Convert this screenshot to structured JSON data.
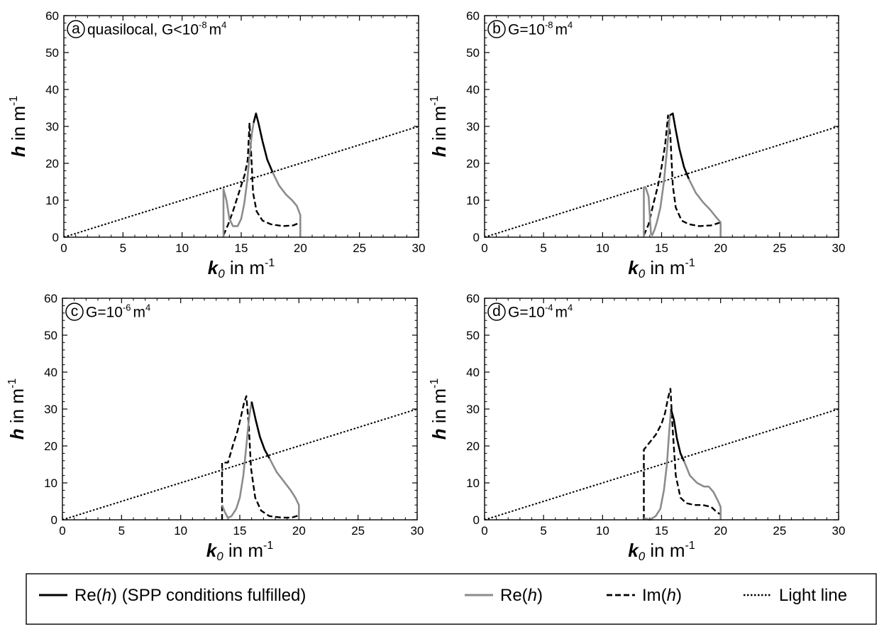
{
  "chart_data": [
    {
      "type": "line",
      "panel_letter": "a",
      "annotation": "quasilocal, G<10",
      "annotation_exp": "-8",
      "annotation_unit": "m",
      "annotation_unit_exp": "4",
      "xlabel_var": "k",
      "xlabel_sub": "0",
      "xlabel_unit": " in m",
      "xlabel_exp": "-1",
      "ylabel_var": "h",
      "ylabel_unit": " in m",
      "ylabel_exp": "-1",
      "xlim": [
        0,
        30
      ],
      "ylim": [
        0,
        60
      ],
      "xticks": [
        "0",
        "5",
        "10",
        "15",
        "20",
        "25",
        "30"
      ],
      "yticks": [
        "0",
        "10",
        "20",
        "30",
        "40",
        "50",
        "60"
      ],
      "series": [
        {
          "key": "light",
          "x": [
            0,
            30
          ],
          "y": [
            0,
            30
          ]
        },
        {
          "key": "im",
          "x": [
            13.5,
            13.9,
            14.3,
            14.7,
            15.0,
            15.3,
            15.55,
            15.7,
            15.85,
            16.0,
            16.3,
            16.8,
            17.5,
            18.5,
            19.4,
            20.0
          ],
          "y": [
            0.5,
            3.5,
            7,
            11,
            14,
            17,
            21,
            31,
            22,
            12,
            7,
            4.5,
            3.5,
            3,
            3.2,
            4
          ]
        },
        {
          "key": "re_gray",
          "x": [
            13.5,
            13.5,
            13.75,
            14.0,
            14.3,
            14.7,
            15.0,
            15.25,
            15.5,
            15.7,
            15.9,
            16.05
          ],
          "y": [
            0,
            13,
            10,
            5,
            3,
            3,
            5,
            9,
            15,
            22,
            28,
            31
          ]
        },
        {
          "key": "re_spp",
          "x": [
            16.05,
            16.25,
            16.45,
            16.8,
            17.2,
            17.65
          ],
          "y": [
            31,
            33.5,
            31,
            26,
            21,
            17.6
          ]
        },
        {
          "key": "re_gray",
          "x": [
            17.65,
            18.2,
            18.8,
            19.3,
            19.7,
            20.0,
            20.0
          ],
          "y": [
            17.6,
            14,
            11.5,
            10,
            8.5,
            6,
            0
          ]
        }
      ]
    },
    {
      "type": "line",
      "panel_letter": "b",
      "annotation": "G=10",
      "annotation_exp": "-8",
      "annotation_unit": "m",
      "annotation_unit_exp": "4",
      "xlabel_var": "k",
      "xlabel_sub": "0",
      "xlabel_unit": " in m",
      "xlabel_exp": "-1",
      "ylabel_var": "h",
      "ylabel_unit": " in m",
      "ylabel_exp": "-1",
      "xlim": [
        0,
        30
      ],
      "ylim": [
        0,
        60
      ],
      "xticks": [
        "0",
        "5",
        "10",
        "15",
        "20",
        "25",
        "30"
      ],
      "yticks": [
        "0",
        "10",
        "20",
        "30",
        "40",
        "50",
        "60"
      ],
      "series": [
        {
          "key": "light",
          "x": [
            0,
            30
          ],
          "y": [
            0,
            30
          ]
        },
        {
          "key": "im",
          "x": [
            13.5,
            13.9,
            14.3,
            14.7,
            15.0,
            15.3,
            15.55,
            15.75,
            15.95,
            16.2,
            16.7,
            17.3,
            18.2,
            19.2,
            20.0
          ],
          "y": [
            0.5,
            3.5,
            9,
            14,
            19,
            25,
            33,
            27,
            14,
            8,
            4.5,
            3.5,
            3,
            3.2,
            4
          ]
        },
        {
          "key": "re_gray",
          "x": [
            13.5,
            13.5,
            13.65,
            13.9,
            14.0,
            14.1,
            14.2,
            14.4,
            14.6,
            14.9,
            15.2,
            15.5,
            15.7
          ],
          "y": [
            0,
            13.5,
            13.5,
            11,
            6,
            1,
            0.5,
            2,
            4,
            8,
            15,
            25,
            33
          ]
        },
        {
          "key": "re_spp",
          "x": [
            15.7,
            15.95,
            16.2,
            16.5,
            16.9,
            17.3
          ],
          "y": [
            33,
            33.5,
            29,
            24,
            19,
            15.8
          ]
        },
        {
          "key": "re_gray",
          "x": [
            17.3,
            17.9,
            18.5,
            19.1,
            19.6,
            20.0,
            20.0
          ],
          "y": [
            15.8,
            12,
            9.5,
            7.5,
            5.5,
            4,
            0
          ]
        }
      ]
    },
    {
      "type": "line",
      "panel_letter": "c",
      "annotation": "G=10",
      "annotation_exp": "-6",
      "annotation_unit": "m",
      "annotation_unit_exp": "4",
      "xlabel_var": "k",
      "xlabel_sub": "0",
      "xlabel_unit": " in m",
      "xlabel_exp": "-1",
      "ylabel_var": "h",
      "ylabel_unit": " in m",
      "ylabel_exp": "-1",
      "xlim": [
        0,
        30
      ],
      "ylim": [
        0,
        60
      ],
      "xticks": [
        "0",
        "5",
        "10",
        "15",
        "20",
        "25",
        "30"
      ],
      "yticks": [
        "0",
        "10",
        "20",
        "30",
        "40",
        "50",
        "60"
      ],
      "series": [
        {
          "key": "light",
          "x": [
            0,
            30
          ],
          "y": [
            0,
            30
          ]
        },
        {
          "key": "im",
          "x": [
            13.5,
            13.5,
            14.0,
            14.4,
            14.8,
            15.1,
            15.35,
            15.55,
            15.75,
            15.95,
            16.3,
            16.8,
            17.5,
            18.5,
            19.4,
            20.0
          ],
          "y": [
            0,
            15.5,
            15.5,
            20,
            24,
            28,
            31.5,
            33.5,
            26,
            14,
            6,
            2.5,
            1,
            0.6,
            0.6,
            1.2
          ]
        },
        {
          "key": "re_gray",
          "x": [
            13.5,
            13.5,
            13.75,
            14.0,
            14.3,
            14.7,
            15.0,
            15.3,
            15.55,
            15.8,
            15.95,
            16.0
          ],
          "y": [
            4,
            4,
            2,
            0.5,
            1,
            3,
            6,
            12,
            20,
            28,
            31,
            32
          ]
        },
        {
          "key": "re_spp",
          "x": [
            16.0,
            16.35,
            16.7,
            17.1,
            17.5
          ],
          "y": [
            32,
            27,
            22.5,
            19,
            16.7
          ]
        },
        {
          "key": "re_gray",
          "x": [
            17.5,
            18.1,
            18.7,
            19.3,
            19.7,
            20.0,
            20.0
          ],
          "y": [
            16.7,
            13,
            10.5,
            8,
            6,
            4,
            0
          ]
        }
      ]
    },
    {
      "type": "line",
      "panel_letter": "d",
      "annotation": "G=10",
      "annotation_exp": "-4",
      "annotation_unit": "m",
      "annotation_unit_exp": "4",
      "xlabel_var": "k",
      "xlabel_sub": "0",
      "xlabel_unit": " in m",
      "xlabel_exp": "-1",
      "ylabel_var": "h",
      "ylabel_unit": " in m",
      "ylabel_exp": "-1",
      "xlim": [
        0,
        30
      ],
      "ylim": [
        0,
        60
      ],
      "xticks": [
        "0",
        "5",
        "10",
        "15",
        "20",
        "25",
        "30"
      ],
      "yticks": [
        "0",
        "10",
        "20",
        "30",
        "40",
        "50",
        "60"
      ],
      "series": [
        {
          "key": "light",
          "x": [
            0,
            30
          ],
          "y": [
            0,
            30
          ]
        },
        {
          "key": "im",
          "x": [
            13.5,
            13.5,
            14.0,
            14.5,
            15.0,
            15.3,
            15.55,
            15.75,
            15.95,
            16.2,
            16.6,
            17.1,
            17.8,
            18.5,
            19.2,
            19.7,
            20.0
          ],
          "y": [
            0,
            19,
            21,
            23,
            26,
            29,
            33,
            35.5,
            24,
            12,
            6,
            4.5,
            4,
            4,
            3.5,
            2,
            1.5
          ]
        },
        {
          "key": "re_gray",
          "x": [
            13.5,
            14.0,
            14.5,
            14.9,
            15.2,
            15.45,
            15.65,
            15.8
          ],
          "y": [
            0.5,
            0,
            1,
            3,
            8,
            15,
            24,
            30
          ]
        },
        {
          "key": "re_spp",
          "x": [
            15.8,
            16.05,
            16.3,
            16.6,
            16.9
          ],
          "y": [
            30,
            27,
            22,
            18,
            15.9
          ]
        },
        {
          "key": "re_gray",
          "x": [
            16.9,
            17.4,
            18.0,
            18.6,
            19.0,
            19.4,
            19.8,
            20.0,
            20.0
          ],
          "y": [
            15.9,
            12,
            10,
            9,
            9,
            7.5,
            5,
            3.5,
            0
          ]
        }
      ]
    }
  ],
  "legend": {
    "items": [
      {
        "key": "re_spp",
        "text": "Re(",
        "var": "h",
        "tail": ") (SPP conditions fulfilled)"
      },
      {
        "key": "re_gray",
        "text": "Re(",
        "var": "h",
        "tail": ")"
      },
      {
        "key": "im",
        "text": "Im(",
        "var": "h",
        "tail": ")"
      },
      {
        "key": "light",
        "text": "Light line",
        "var": "",
        "tail": ""
      }
    ]
  },
  "styles": {
    "re_spp": {
      "color": "#000000",
      "dash": "none"
    },
    "re_gray": {
      "color": "#8c8c8c",
      "dash": "none"
    },
    "im": {
      "color": "#000000",
      "dash": "8 4"
    },
    "light": {
      "color": "#000000",
      "dash": "2.5 2.5"
    }
  }
}
